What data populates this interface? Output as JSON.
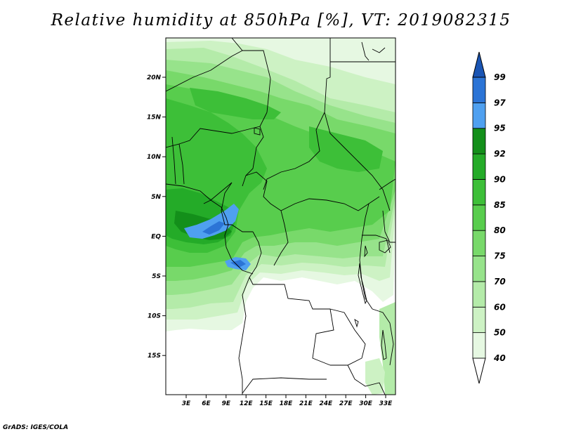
{
  "title": "Relative humidity at 850hPa [%], VT: 2019082315",
  "credit": "GrADS: IGES/COLA",
  "map": {
    "lat_labels": [
      "20N",
      "15N",
      "10N",
      "5N",
      "EQ",
      "5S",
      "10S",
      "15S"
    ],
    "lon_labels": [
      "3E",
      "6E",
      "9E",
      "12E",
      "15E",
      "18E",
      "21E",
      "24E",
      "27E",
      "30E",
      "33E"
    ],
    "variable": "Relative humidity",
    "level": "850hPa",
    "unit": "%"
  },
  "colorbar": {
    "labels": [
      "40",
      "50",
      "60",
      "70",
      "75",
      "80",
      "85",
      "90",
      "92",
      "95",
      "97",
      "99"
    ],
    "colors": [
      "#ffffff",
      "#e6f8e2",
      "#cdf2c4",
      "#b4eba9",
      "#97e38b",
      "#78d96a",
      "#58cd4d",
      "#3dbf38",
      "#24ab28",
      "#138f1a",
      "#4fa0f0",
      "#2b74d6",
      "#1a55b4"
    ]
  },
  "colors": {
    "land_no_data": "#ffffff",
    "border": "#000000"
  }
}
